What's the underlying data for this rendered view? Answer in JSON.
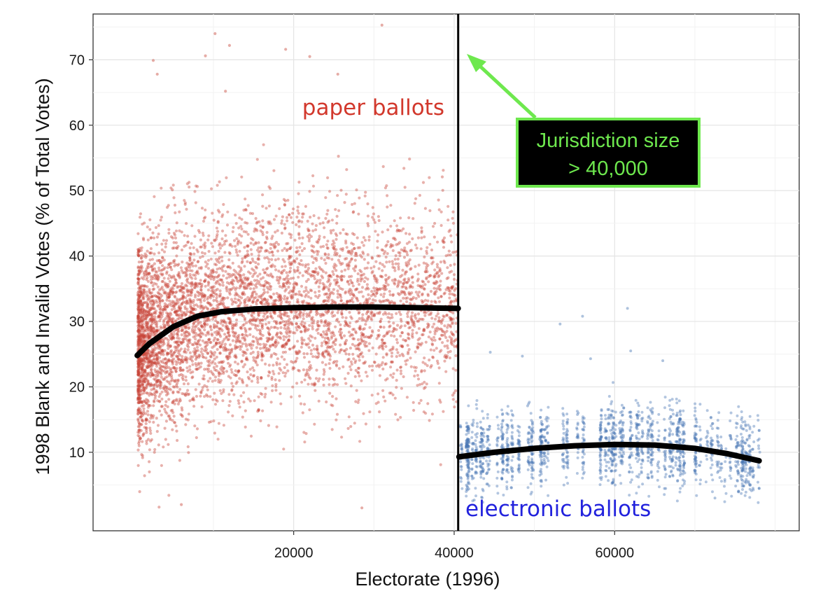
{
  "chart_data": {
    "type": "scatter",
    "title": "",
    "xlabel": "Electorate (1996)",
    "ylabel": "1998 Blank and Invalid Votes (% of Total Votes)",
    "xlim": [
      -5000,
      83000
    ],
    "ylim": [
      -2,
      77
    ],
    "x_ticks": [
      20000,
      40000,
      60000
    ],
    "y_ticks": [
      10,
      20,
      30,
      40,
      50,
      60,
      70
    ],
    "grid": true,
    "threshold": {
      "x": 40500
    },
    "series": [
      {
        "name": "paper ballots",
        "color": "#c8463a",
        "x_range": [
          600,
          40500
        ],
        "fit_curve": [
          [
            500,
            24.8
          ],
          [
            2000,
            26.6
          ],
          [
            5000,
            29.2
          ],
          [
            8000,
            30.8
          ],
          [
            11000,
            31.5
          ],
          [
            15000,
            31.9
          ],
          [
            20000,
            32.1
          ],
          [
            25000,
            32.2
          ],
          [
            30000,
            32.2
          ],
          [
            35000,
            32.1
          ],
          [
            40500,
            32.0
          ]
        ],
        "points_sample": [
          [
            10200,
            74.0
          ],
          [
            31000,
            75.3
          ],
          [
            12000,
            72.2
          ],
          [
            19000,
            71.6
          ],
          [
            22000,
            70.5
          ],
          [
            9000,
            70.6
          ],
          [
            2500,
            69.9
          ],
          [
            3000,
            67.8
          ],
          [
            11500,
            65.2
          ],
          [
            25500,
            67.8
          ],
          [
            28500,
            1.5
          ],
          [
            6000,
            2.0
          ],
          [
            1300,
            26.0
          ],
          [
            700,
            40.7
          ]
        ]
      },
      {
        "name": "electronic ballots",
        "color": "#4a77b4",
        "x_range": [
          40600,
          78000
        ],
        "fit_curve": [
          [
            40600,
            9.3
          ],
          [
            45000,
            10.0
          ],
          [
            50000,
            10.6
          ],
          [
            55000,
            11.0
          ],
          [
            60000,
            11.2
          ],
          [
            65000,
            11.1
          ],
          [
            70000,
            10.6
          ],
          [
            74000,
            9.8
          ],
          [
            78000,
            8.7
          ]
        ],
        "points_sample": [
          [
            61600,
            32.0
          ],
          [
            53200,
            29.6
          ],
          [
            56000,
            30.8
          ],
          [
            44500,
            25.3
          ],
          [
            48500,
            24.7
          ],
          [
            66000,
            24.0
          ],
          [
            57000,
            24.3
          ],
          [
            62000,
            25.5
          ],
          [
            42500,
            2.7
          ],
          [
            72500,
            3.0
          ],
          [
            78000,
            4.5
          ]
        ]
      }
    ],
    "annotations": {
      "paper_label": "paper ballots",
      "electronic_label": "electronic ballots",
      "box_line1": "Jurisdiction size",
      "box_line2": "> 40,000"
    },
    "colors": {
      "paper": "#d2382c",
      "electronic": "#2222dd",
      "arrow": "#6ee84e",
      "box_bg": "#000000",
      "box_text": "#6ee84e",
      "fit_line": "#000000"
    }
  }
}
